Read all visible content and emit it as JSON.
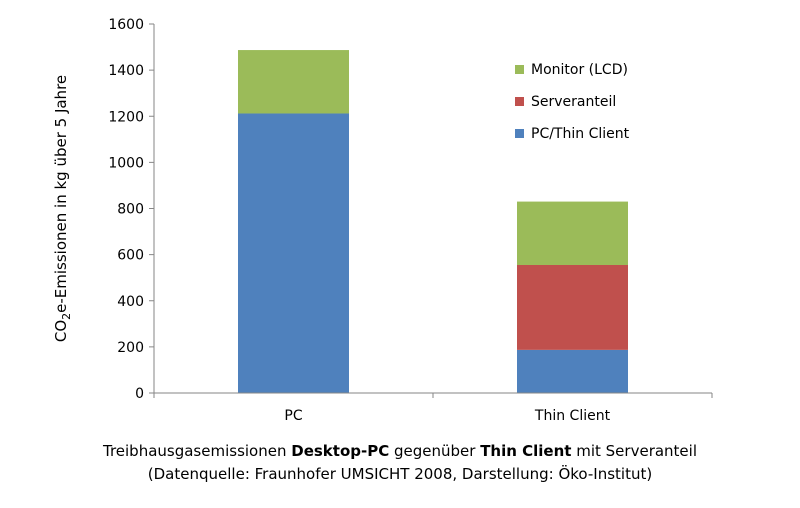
{
  "chart_data": {
    "type": "bar",
    "stacked": true,
    "categories": [
      "PC",
      "Thin Client"
    ],
    "series": [
      {
        "name": "PC/Thin Client",
        "color": "#4f81bd",
        "values": [
          1212,
          187
        ]
      },
      {
        "name": "Serveranteil",
        "color": "#c0504d",
        "values": [
          0,
          368
        ]
      },
      {
        "name": "Monitor (LCD)",
        "color": "#9bbb59",
        "values": [
          275,
          275
        ]
      }
    ],
    "ylabel": {
      "pre": "CO",
      "sub": "2",
      "post": "e-Emissionen  in kg  über 5 Jahre"
    },
    "ylim": [
      0,
      1600
    ],
    "yticks": [
      "0",
      "200",
      "400",
      "600",
      "800",
      "1000",
      "1200",
      "1400",
      "1600"
    ],
    "grid": false,
    "legend_position": "top-right"
  },
  "caption": {
    "line1_pre": "Treibhausgasemissionen ",
    "line1_b1": "Desktop-PC",
    "line1_mid": " gegenüber ",
    "line1_b2": "Thin Client",
    "line1_post": " mit Serveranteil",
    "line2": "(Datenquelle:  Fraunhofer  UMSICHT 2008, Darstellung:  Öko-Institut)"
  }
}
